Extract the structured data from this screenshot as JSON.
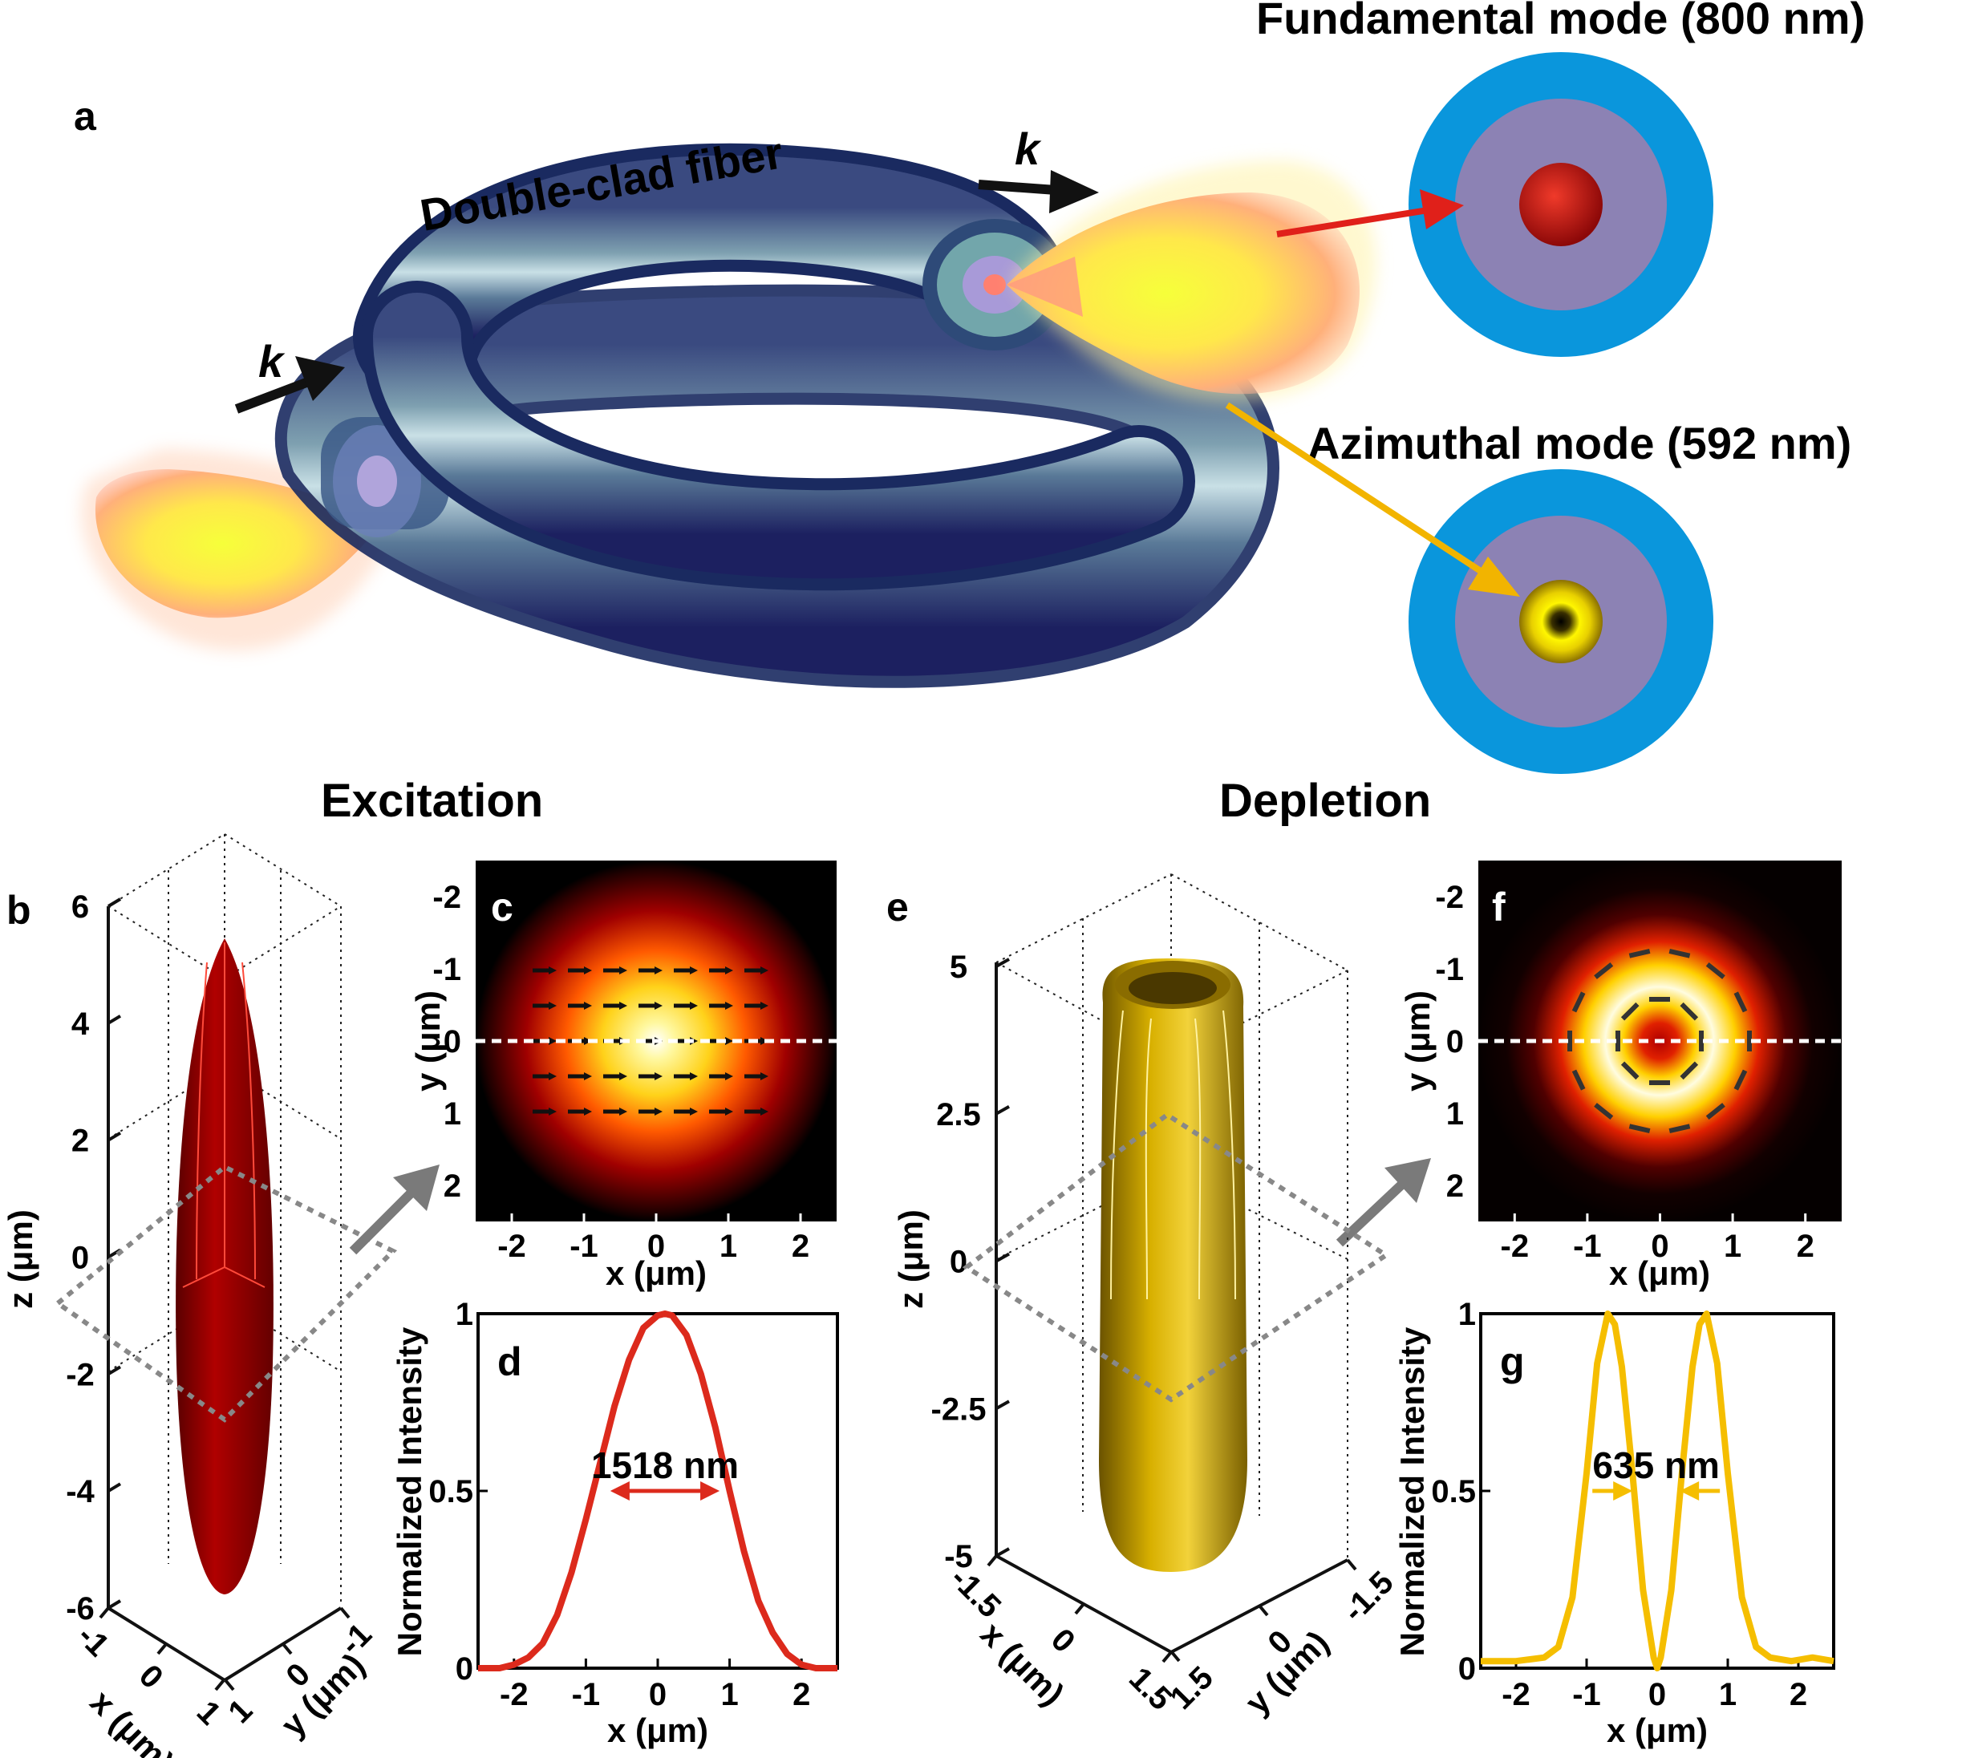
{
  "panel_a": {
    "letter": "a",
    "fiber_label": "Double-clad fiber",
    "wave_vector_in": "k",
    "wave_vector_out": "k",
    "fundamental_title": "Fundamental mode (800 nm)",
    "azimuthal_title": "Azimuthal mode (592 nm)",
    "colors": {
      "outer_clad": "#0a96dc",
      "inner_clad": "#8c82b4",
      "core_fundamental": "#c01a12",
      "core_azimuthal": "#e8d400",
      "red_arrow": "#e0201a",
      "yellow_arrow": "#f2b400"
    }
  },
  "headings": {
    "excitation": "Excitation",
    "depletion": "Depletion"
  },
  "panel_b": {
    "letter": "b",
    "zlabel": "z (μm)",
    "xlabel": "x (μm)",
    "ylabel": "y (μm)",
    "zticks": [
      "6",
      "4",
      "2",
      "0",
      "-2",
      "-4",
      "-6"
    ],
    "xticks": [
      "-1",
      "0",
      "1"
    ],
    "yticks": [
      "-1",
      "0",
      "1"
    ],
    "color": "#a00000"
  },
  "panel_c": {
    "letter": "c",
    "xlabel": "x (μm)",
    "ylabel": "y (μm)",
    "xticks": [
      "-2",
      "-1",
      "0",
      "1",
      "2"
    ],
    "yticks": [
      "-2",
      "-1",
      "0",
      "1",
      "2"
    ]
  },
  "panel_e": {
    "letter": "e",
    "zlabel": "z (μm)",
    "xlabel": "x (μm)",
    "ylabel": "y (μm)",
    "zticks": [
      "5",
      "2.5",
      "0",
      "-2.5",
      "-5"
    ],
    "xticks": [
      "-1.5",
      "0",
      "1.5"
    ],
    "yticks": [
      "-1.5",
      "0",
      "1.5"
    ],
    "color": "#c8a000"
  },
  "panel_f": {
    "letter": "f",
    "xlabel": "x (μm)",
    "ylabel": "y (μm)",
    "xticks": [
      "-2",
      "-1",
      "0",
      "1",
      "2"
    ],
    "yticks": [
      "-2",
      "-1",
      "0",
      "1",
      "2"
    ]
  },
  "chart_data": [
    {
      "id": "d",
      "type": "line",
      "letter": "d",
      "xlabel": "x (μm)",
      "ylabel": "Normalized Intensity",
      "xlim": [
        -2.5,
        2.5
      ],
      "ylim": [
        0,
        1
      ],
      "xticks": [
        "-2",
        "-1",
        "0",
        "1",
        "2"
      ],
      "yticks": [
        "0",
        "0.5",
        "1"
      ],
      "annotation": "1518 nm",
      "fwhm": [
        -0.66,
        0.86
      ],
      "color": "#dc2a1c",
      "series": [
        {
          "x": [
            -2.5,
            -2.2,
            -2.0,
            -1.8,
            -1.6,
            -1.4,
            -1.2,
            -1.0,
            -0.8,
            -0.6,
            -0.4,
            -0.2,
            0.0,
            0.1,
            0.2,
            0.4,
            0.6,
            0.8,
            1.0,
            1.2,
            1.4,
            1.6,
            1.8,
            2.0,
            2.2,
            2.5
          ],
          "y": [
            0.0,
            0.0,
            0.01,
            0.03,
            0.07,
            0.15,
            0.27,
            0.42,
            0.58,
            0.74,
            0.87,
            0.96,
            0.995,
            1.0,
            0.995,
            0.94,
            0.83,
            0.68,
            0.5,
            0.33,
            0.19,
            0.1,
            0.04,
            0.01,
            0.0,
            0.0
          ]
        }
      ]
    },
    {
      "id": "g",
      "type": "line",
      "letter": "g",
      "xlabel": "x (μm)",
      "ylabel": "Normalized Intensity",
      "xlim": [
        -2.5,
        2.5
      ],
      "ylim": [
        0,
        1
      ],
      "xticks": [
        "-2",
        "-1",
        "0",
        "1",
        "2"
      ],
      "yticks": [
        "0",
        "0.5",
        "1"
      ],
      "annotation": "635 nm",
      "fwhm": [
        -0.35,
        0.32
      ],
      "color": "#f5be00",
      "series": [
        {
          "x": [
            -2.5,
            -2.0,
            -1.6,
            -1.4,
            -1.2,
            -1.0,
            -0.85,
            -0.7,
            -0.6,
            -0.5,
            -0.35,
            -0.2,
            -0.05,
            0.0,
            0.05,
            0.2,
            0.35,
            0.5,
            0.6,
            0.7,
            0.85,
            1.0,
            1.2,
            1.4,
            1.6,
            1.9,
            2.2,
            2.5
          ],
          "y": [
            0.02,
            0.02,
            0.03,
            0.06,
            0.2,
            0.55,
            0.86,
            1.0,
            0.97,
            0.85,
            0.55,
            0.22,
            0.03,
            0.0,
            0.03,
            0.22,
            0.55,
            0.85,
            0.97,
            1.0,
            0.86,
            0.55,
            0.2,
            0.06,
            0.03,
            0.02,
            0.03,
            0.02
          ]
        }
      ]
    }
  ]
}
